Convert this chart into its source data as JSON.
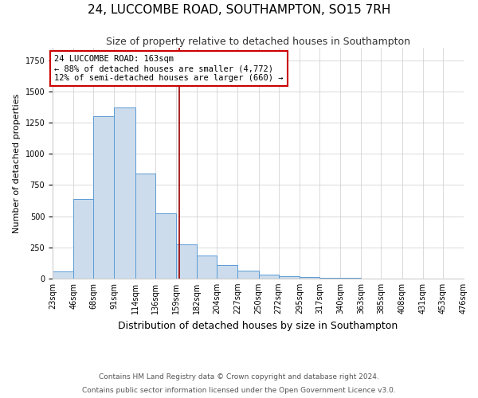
{
  "title": "24, LUCCOMBE ROAD, SOUTHAMPTON, SO15 7RH",
  "subtitle": "Size of property relative to detached houses in Southampton",
  "xlabel": "Distribution of detached houses by size in Southampton",
  "ylabel": "Number of detached properties",
  "footnote1": "Contains HM Land Registry data © Crown copyright and database right 2024.",
  "footnote2": "Contains public sector information licensed under the Open Government Licence v3.0.",
  "annotation_line1": "24 LUCCOMBE ROAD: 163sqm",
  "annotation_line2": "← 88% of detached houses are smaller (4,772)",
  "annotation_line3": "12% of semi-detached houses are larger (660) →",
  "bin_edges": [
    23,
    46,
    68,
    91,
    114,
    136,
    159,
    182,
    204,
    227,
    250,
    272,
    295,
    317,
    340,
    363,
    385,
    408,
    431,
    453,
    476
  ],
  "bar_heights": [
    55,
    640,
    1300,
    1370,
    840,
    520,
    275,
    185,
    110,
    65,
    35,
    22,
    14,
    8,
    4,
    3,
    2,
    2,
    0,
    0
  ],
  "property_size": 163,
  "bar_color": "#ccdcec",
  "bar_edgecolor": "#5b9bd5",
  "vline_color": "#990000",
  "annotation_box_edgecolor": "#cc0000",
  "annotation_box_facecolor": "#ffffff",
  "ylim": [
    0,
    1850
  ],
  "title_fontsize": 11,
  "subtitle_fontsize": 9,
  "xlabel_fontsize": 9,
  "ylabel_fontsize": 8,
  "annotation_fontsize": 7.5,
  "tick_fontsize": 7,
  "footnote_fontsize": 6.5
}
